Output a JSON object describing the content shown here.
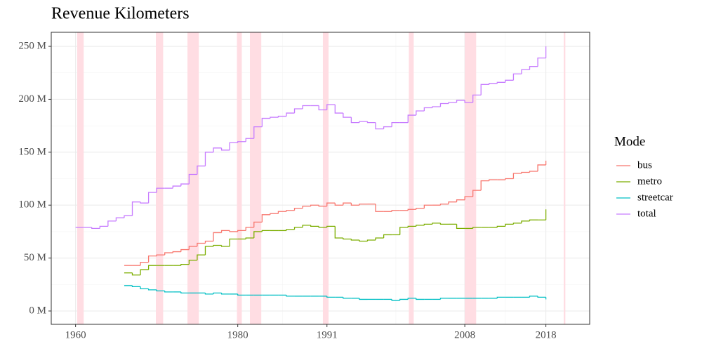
{
  "chart_data": {
    "type": "step-line",
    "title": "Revenue Kilometers",
    "x": [
      1960,
      1961,
      1962,
      1963,
      1964,
      1965,
      1966,
      1967,
      1968,
      1969,
      1970,
      1971,
      1972,
      1973,
      1974,
      1975,
      1976,
      1977,
      1978,
      1979,
      1980,
      1981,
      1982,
      1983,
      1984,
      1985,
      1986,
      1987,
      1988,
      1989,
      1990,
      1991,
      1992,
      1993,
      1994,
      1995,
      1996,
      1997,
      1998,
      1999,
      2000,
      2001,
      2002,
      2003,
      2004,
      2005,
      2006,
      2007,
      2008,
      2009,
      2010,
      2011,
      2012,
      2013,
      2014,
      2015,
      2016,
      2017,
      2018
    ],
    "series": [
      {
        "name": "bus",
        "color": "#F8766D",
        "values": [
          null,
          null,
          null,
          null,
          null,
          null,
          43,
          43,
          46,
          52,
          53,
          55,
          56,
          58,
          61,
          64,
          66,
          74,
          76,
          75,
          76,
          79,
          84,
          91,
          92,
          94,
          95,
          97,
          99,
          100,
          99,
          102,
          100,
          102,
          100,
          101,
          101,
          94,
          94,
          95,
          95,
          96,
          97,
          100,
          100,
          101,
          103,
          105,
          108,
          114,
          123,
          124,
          124,
          125,
          130,
          131,
          132,
          138,
          142
        ]
      },
      {
        "name": "metro",
        "color": "#7CAE00",
        "values": [
          null,
          null,
          null,
          null,
          null,
          null,
          36,
          34,
          39,
          43,
          43,
          43,
          43,
          44,
          48,
          53,
          61,
          62,
          61,
          68,
          68,
          69,
          75,
          76,
          76,
          76,
          77,
          79,
          81,
          80,
          79,
          80,
          69,
          68,
          67,
          66,
          67,
          69,
          72,
          72,
          79,
          80,
          81,
          82,
          83,
          82,
          82,
          78,
          78,
          79,
          79,
          79,
          80,
          82,
          83,
          85,
          86,
          86,
          96
        ]
      },
      {
        "name": "streetcar",
        "color": "#00BFC4",
        "values": [
          null,
          null,
          null,
          null,
          null,
          null,
          24,
          23,
          21,
          20,
          19,
          18,
          18,
          17,
          17,
          17,
          16,
          17,
          16,
          16,
          15,
          15,
          15,
          15,
          15,
          15,
          14,
          14,
          14,
          14,
          14,
          13,
          13,
          12,
          12,
          11,
          11,
          11,
          11,
          10,
          11,
          12,
          11,
          11,
          11,
          12,
          12,
          12,
          12,
          12,
          12,
          12,
          13,
          13,
          13,
          13,
          14,
          13,
          11
        ]
      },
      {
        "name": "total",
        "color": "#C77CFF",
        "values": [
          79,
          79,
          78,
          80,
          85,
          88,
          90,
          103,
          102,
          112,
          116,
          116,
          118,
          120,
          129,
          137,
          150,
          154,
          152,
          159,
          160,
          163,
          174,
          182,
          183,
          184,
          187,
          191,
          194,
          194,
          190,
          195,
          187,
          183,
          178,
          179,
          178,
          172,
          174,
          178,
          178,
          185,
          189,
          192,
          193,
          196,
          197,
          199,
          197,
          204,
          214,
          215,
          216,
          218,
          224,
          228,
          231,
          239,
          250
        ]
      }
    ],
    "recessions": [
      [
        1960.2,
        1961.0
      ],
      [
        1969.9,
        1970.8
      ],
      [
        1973.8,
        1975.2
      ],
      [
        1979.9,
        1980.5
      ],
      [
        1981.5,
        1982.9
      ],
      [
        1990.5,
        1991.2
      ],
      [
        2001.1,
        2001.7
      ],
      [
        2008.0,
        2009.4
      ],
      [
        2020.2,
        2020.4
      ]
    ],
    "recession_color": "#FFDDE3",
    "xlim": [
      1957,
      2023.4
    ],
    "xticks": [
      1960,
      1980,
      1991,
      2008,
      2018
    ],
    "ylim": [
      -12.6,
      263.3
    ],
    "yticks": [
      {
        "value": 0,
        "label": "0 M"
      },
      {
        "value": 50,
        "label": "50 M"
      },
      {
        "value": 100,
        "label": "100 M"
      },
      {
        "value": 150,
        "label": "150 M"
      },
      {
        "value": 200,
        "label": "200 M"
      },
      {
        "value": 250,
        "label": "250 M"
      }
    ],
    "grid": true,
    "legend_title": "Mode",
    "legend_position": "right"
  }
}
